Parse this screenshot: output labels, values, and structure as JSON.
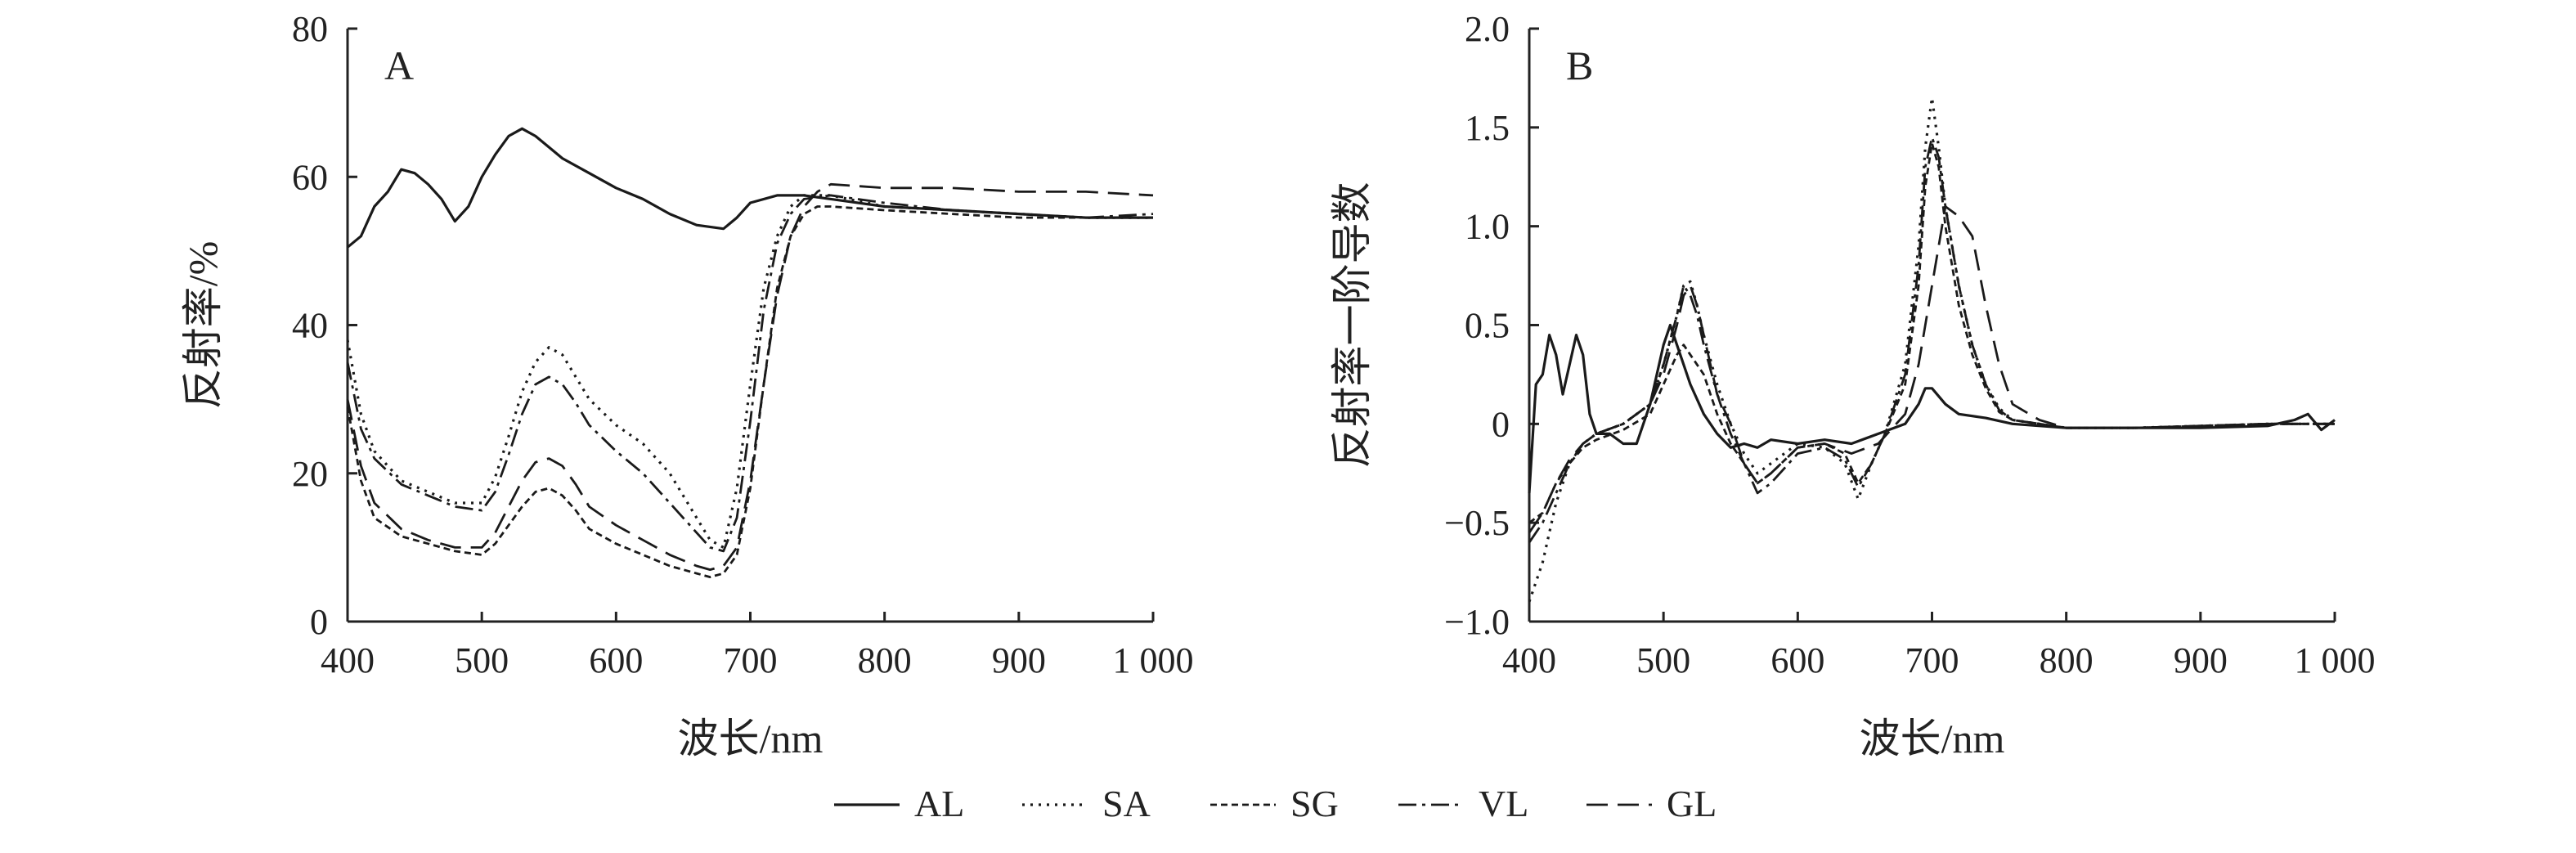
{
  "figure": {
    "legend": {
      "placement": "bottom-center",
      "items": [
        {
          "name": "AL",
          "dash": "solid"
        },
        {
          "name": "SA",
          "dash": "dotted"
        },
        {
          "name": "SG",
          "dash": "short-dash"
        },
        {
          "name": "VL",
          "dash": "dash-dot"
        },
        {
          "name": "GL",
          "dash": "long-dash"
        }
      ]
    }
  },
  "chart_data": [
    {
      "type": "line",
      "panel_label": "A",
      "xlabel": "波长/nm",
      "ylabel": "反射率/%",
      "xlim": [
        400,
        1000
      ],
      "ylim": [
        0,
        80
      ],
      "xticks": [
        400,
        500,
        600,
        700,
        800,
        900,
        1000
      ],
      "xtick_labels": [
        "400",
        "500",
        "600",
        "700",
        "800",
        "900",
        "1 000"
      ],
      "yticks": [
        0,
        20,
        40,
        60,
        80
      ],
      "ytick_labels": [
        "0",
        "20",
        "40",
        "60",
        "80"
      ],
      "grid": false,
      "series": [
        {
          "name": "AL",
          "x": [
            400,
            410,
            420,
            430,
            440,
            450,
            460,
            470,
            480,
            490,
            500,
            510,
            520,
            530,
            540,
            550,
            560,
            580,
            600,
            620,
            640,
            660,
            680,
            690,
            700,
            720,
            740,
            760,
            800,
            850,
            900,
            950,
            1000
          ],
          "y": [
            50.5,
            52,
            56,
            58,
            61,
            60.5,
            59,
            57,
            54,
            56,
            60,
            63,
            65.5,
            66.5,
            65.5,
            64,
            62.5,
            60.5,
            58.5,
            57,
            55,
            53.5,
            53,
            54.5,
            56.5,
            57.5,
            57.5,
            57,
            56,
            55.5,
            55,
            54.5,
            54.5
          ]
        },
        {
          "name": "SA",
          "x": [
            400,
            410,
            420,
            440,
            460,
            480,
            500,
            510,
            520,
            530,
            540,
            550,
            560,
            570,
            580,
            600,
            620,
            640,
            660,
            670,
            680,
            690,
            700,
            710,
            720,
            730,
            740,
            760,
            800,
            850,
            900,
            950,
            1000
          ],
          "y": [
            38,
            28,
            23,
            19,
            17.5,
            16,
            16,
            19.5,
            25,
            31,
            35,
            37,
            36,
            33,
            30,
            26.5,
            24,
            20,
            14,
            11,
            10,
            18,
            32,
            45,
            52,
            56,
            57.5,
            57.5,
            56,
            55.5,
            55,
            54.5,
            54.5
          ]
        },
        {
          "name": "SG",
          "x": [
            400,
            410,
            420,
            440,
            460,
            480,
            500,
            510,
            520,
            530,
            540,
            550,
            560,
            570,
            580,
            600,
            620,
            640,
            660,
            670,
            680,
            690,
            700,
            710,
            720,
            730,
            740,
            750,
            760,
            800,
            850,
            900,
            950,
            1000
          ],
          "y": [
            29,
            19,
            14,
            11.5,
            10.5,
            9.5,
            9,
            10.5,
            13,
            15.5,
            17.5,
            18,
            17,
            15,
            12.5,
            10.5,
            9,
            7.5,
            6.5,
            6,
            6.5,
            9,
            18,
            32,
            45,
            52,
            55,
            56,
            56,
            55.5,
            55,
            54.5,
            54.5,
            54.5
          ]
        },
        {
          "name": "VL",
          "x": [
            400,
            410,
            420,
            440,
            460,
            480,
            500,
            510,
            520,
            530,
            540,
            550,
            560,
            570,
            580,
            600,
            620,
            640,
            660,
            670,
            680,
            690,
            700,
            710,
            720,
            730,
            740,
            760,
            800,
            850,
            900,
            950,
            1000
          ],
          "y": [
            35,
            26,
            22,
            18.5,
            17,
            15.5,
            15,
            17.5,
            22.5,
            28,
            32,
            33,
            32,
            29.5,
            26.5,
            23,
            20,
            16,
            12,
            10,
            9.5,
            14,
            27,
            42,
            51,
            55,
            57,
            57.5,
            56.5,
            55.5,
            55,
            54.5,
            55
          ]
        },
        {
          "name": "GL",
          "x": [
            400,
            410,
            420,
            440,
            460,
            480,
            500,
            510,
            520,
            530,
            540,
            550,
            560,
            570,
            580,
            600,
            620,
            640,
            660,
            670,
            680,
            690,
            700,
            710,
            720,
            730,
            740,
            750,
            760,
            800,
            850,
            900,
            950,
            1000
          ],
          "y": [
            30,
            21,
            16,
            12.5,
            11,
            10,
            10,
            12,
            15.5,
            19,
            21.5,
            22,
            21,
            18.5,
            15.5,
            13,
            11,
            9,
            7.5,
            7,
            7.5,
            10,
            19,
            32,
            44,
            52,
            56,
            58,
            59,
            58.5,
            58.5,
            58,
            58,
            57.5
          ]
        }
      ]
    },
    {
      "type": "line",
      "panel_label": "B",
      "xlabel": "波长/nm",
      "ylabel": "反射率一阶导数",
      "xlim": [
        400,
        1000
      ],
      "ylim": [
        -1.0,
        2.0
      ],
      "xticks": [
        400,
        500,
        600,
        700,
        800,
        900,
        1000
      ],
      "xtick_labels": [
        "400",
        "500",
        "600",
        "700",
        "800",
        "900",
        "1 000"
      ],
      "yticks": [
        -1.0,
        -0.5,
        0,
        0.5,
        1.0,
        1.5,
        2.0
      ],
      "ytick_labels": [
        "−1.0",
        "−0.5",
        "0",
        "0.5",
        "1.0",
        "1.5",
        "2.0"
      ],
      "grid": false,
      "series": [
        {
          "name": "AL",
          "x": [
            400,
            405,
            410,
            415,
            420,
            425,
            430,
            435,
            440,
            445,
            450,
            460,
            470,
            480,
            490,
            500,
            505,
            510,
            520,
            530,
            540,
            550,
            560,
            570,
            580,
            600,
            620,
            640,
            660,
            680,
            690,
            695,
            700,
            710,
            720,
            740,
            760,
            800,
            850,
            900,
            950,
            970,
            980,
            990,
            1000
          ],
          "y": [
            -0.35,
            0.2,
            0.25,
            0.45,
            0.35,
            0.15,
            0.3,
            0.45,
            0.35,
            0.05,
            -0.05,
            -0.05,
            -0.1,
            -0.1,
            0.1,
            0.4,
            0.5,
            0.4,
            0.2,
            0.05,
            -0.05,
            -0.12,
            -0.1,
            -0.12,
            -0.08,
            -0.1,
            -0.08,
            -0.1,
            -0.05,
            0.0,
            0.1,
            0.18,
            0.18,
            0.1,
            0.05,
            0.03,
            0.0,
            -0.02,
            -0.02,
            -0.02,
            -0.01,
            0.02,
            0.05,
            -0.03,
            0.02
          ]
        },
        {
          "name": "SA",
          "x": [
            400,
            410,
            420,
            430,
            440,
            450,
            470,
            490,
            500,
            510,
            515,
            520,
            525,
            530,
            540,
            550,
            560,
            570,
            580,
            600,
            620,
            635,
            645,
            655,
            665,
            680,
            690,
            695,
            700,
            705,
            710,
            720,
            730,
            740,
            750,
            760,
            780,
            800,
            850,
            900,
            950,
            1000
          ],
          "y": [
            -0.9,
            -0.7,
            -0.4,
            -0.2,
            -0.1,
            -0.05,
            0.0,
            0.1,
            0.3,
            0.55,
            0.7,
            0.72,
            0.6,
            0.45,
            0.2,
            0.0,
            -0.15,
            -0.25,
            -0.2,
            -0.1,
            -0.12,
            -0.2,
            -0.38,
            -0.2,
            -0.05,
            0.3,
            0.9,
            1.4,
            1.65,
            1.4,
            1.1,
            0.7,
            0.4,
            0.2,
            0.08,
            0.02,
            0.0,
            -0.02,
            -0.02,
            -0.01,
            0.0,
            0.0
          ]
        },
        {
          "name": "SG",
          "x": [
            400,
            410,
            420,
            430,
            440,
            450,
            470,
            490,
            500,
            510,
            515,
            520,
            525,
            530,
            540,
            550,
            560,
            570,
            580,
            600,
            620,
            635,
            645,
            655,
            665,
            680,
            690,
            695,
            700,
            705,
            710,
            720,
            730,
            740,
            750,
            760,
            780,
            800,
            850,
            900,
            950,
            1000
          ],
          "y": [
            -0.5,
            -0.45,
            -0.3,
            -0.2,
            -0.12,
            -0.08,
            -0.03,
            0.05,
            0.2,
            0.35,
            0.4,
            0.35,
            0.3,
            0.25,
            0.05,
            -0.1,
            -0.2,
            -0.3,
            -0.25,
            -0.12,
            -0.1,
            -0.15,
            -0.3,
            -0.2,
            -0.05,
            0.2,
            0.7,
            1.2,
            1.42,
            1.3,
            1.0,
            0.6,
            0.35,
            0.18,
            0.06,
            0.02,
            0.0,
            -0.02,
            -0.02,
            -0.01,
            0.0,
            0.0
          ]
        },
        {
          "name": "VL",
          "x": [
            400,
            410,
            420,
            430,
            440,
            450,
            470,
            490,
            500,
            510,
            515,
            520,
            525,
            530,
            540,
            550,
            560,
            570,
            580,
            600,
            620,
            635,
            645,
            655,
            665,
            680,
            690,
            695,
            700,
            705,
            710,
            720,
            730,
            740,
            750,
            760,
            780,
            800,
            850,
            900,
            950,
            1000
          ],
          "y": [
            -0.6,
            -0.5,
            -0.35,
            -0.2,
            -0.1,
            -0.05,
            0.0,
            0.1,
            0.3,
            0.55,
            0.7,
            0.65,
            0.55,
            0.4,
            0.15,
            -0.05,
            -0.2,
            -0.35,
            -0.3,
            -0.15,
            -0.12,
            -0.18,
            -0.32,
            -0.2,
            -0.05,
            0.25,
            0.8,
            1.3,
            1.45,
            1.35,
            1.1,
            0.7,
            0.4,
            0.2,
            0.07,
            0.02,
            0.0,
            -0.02,
            -0.02,
            -0.01,
            0.0,
            0.0
          ]
        },
        {
          "name": "GL",
          "x": [
            400,
            410,
            420,
            430,
            440,
            450,
            470,
            490,
            500,
            510,
            515,
            520,
            525,
            530,
            540,
            550,
            560,
            570,
            580,
            600,
            620,
            640,
            660,
            680,
            690,
            700,
            710,
            720,
            725,
            730,
            740,
            750,
            760,
            780,
            800,
            850,
            900,
            950,
            1000
          ],
          "y": [
            -0.55,
            -0.45,
            -0.3,
            -0.18,
            -0.1,
            -0.05,
            0.0,
            0.1,
            0.25,
            0.5,
            0.65,
            0.7,
            0.6,
            0.45,
            0.15,
            0.0,
            -0.2,
            -0.3,
            -0.25,
            -0.12,
            -0.1,
            -0.15,
            -0.1,
            0.05,
            0.3,
            0.7,
            1.1,
            1.05,
            1.0,
            0.95,
            0.6,
            0.3,
            0.1,
            0.02,
            -0.02,
            -0.02,
            -0.01,
            0.0,
            0.0
          ]
        }
      ]
    }
  ]
}
